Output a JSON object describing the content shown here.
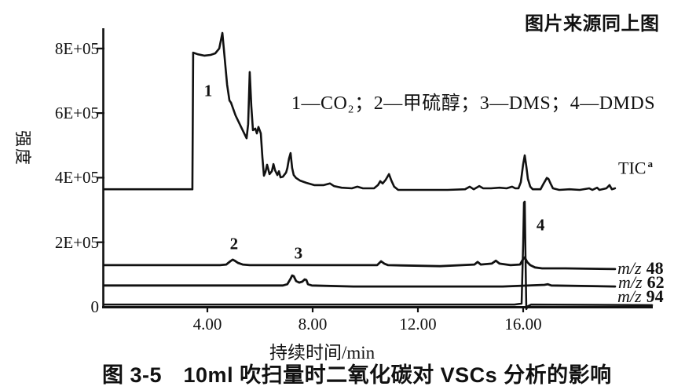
{
  "header": {
    "source_note": "图片来源同上图"
  },
  "chart_data": {
    "type": "line",
    "title": "图 3-5　10ml 吹扫量时二氧化碳对 VSCs 分析的影响",
    "legend_note": "1—CO₂；2—甲硫醇；3—DMS；4—DMDS",
    "xlabel": "持续时间/min",
    "ylabel": "强度",
    "xlim": [
      0,
      21
    ],
    "ylim": [
      0,
      880000
    ],
    "grid": false,
    "x_ticks": [
      {
        "t": 4,
        "label": "4.00"
      },
      {
        "t": 8,
        "label": "8.00"
      },
      {
        "t": 12,
        "label": "12.00"
      },
      {
        "t": 16,
        "label": "16.00"
      }
    ],
    "y_ticks": [
      {
        "value": 800000,
        "label": "8E+05"
      },
      {
        "value": 600000,
        "label": "6E+05"
      },
      {
        "value": 400000,
        "label": "4E+05"
      },
      {
        "value": 200000,
        "label": "2E+05"
      },
      {
        "value": 0,
        "label": "0"
      }
    ],
    "annotations": [
      {
        "label": "1",
        "t": 4.03,
        "intensity": 668000
      },
      {
        "label": "2",
        "t": 5.01,
        "intensity": 194000
      },
      {
        "label": "3",
        "t": 7.46,
        "intensity": 165000
      },
      {
        "label": "4",
        "t": 16.66,
        "intensity": 253000
      }
    ],
    "series": [
      {
        "name": "TIC",
        "sup": "a",
        "points": [
          [
            0.09,
            364000
          ],
          [
            3.43,
            364000
          ],
          [
            3.46,
            787000
          ],
          [
            3.64,
            782000
          ],
          [
            3.88,
            778000
          ],
          [
            4.12,
            780000
          ],
          [
            4.3,
            785000
          ],
          [
            4.45,
            800000
          ],
          [
            4.57,
            848000
          ],
          [
            4.66,
            768000
          ],
          [
            4.75,
            688000
          ],
          [
            4.84,
            639000
          ],
          [
            4.9,
            632000
          ],
          [
            5.07,
            593000
          ],
          [
            5.28,
            557000
          ],
          [
            5.49,
            522000
          ],
          [
            5.55,
            566000
          ],
          [
            5.61,
            727000
          ],
          [
            5.67,
            622000
          ],
          [
            5.73,
            547000
          ],
          [
            5.82,
            552000
          ],
          [
            5.88,
            537000
          ],
          [
            5.94,
            557000
          ],
          [
            6.03,
            537000
          ],
          [
            6.09,
            464000
          ],
          [
            6.15,
            406000
          ],
          [
            6.21,
            418000
          ],
          [
            6.27,
            440000
          ],
          [
            6.36,
            411000
          ],
          [
            6.45,
            420000
          ],
          [
            6.51,
            442000
          ],
          [
            6.57,
            423000
          ],
          [
            6.66,
            408000
          ],
          [
            6.72,
            420000
          ],
          [
            6.78,
            401000
          ],
          [
            6.87,
            403000
          ],
          [
            6.99,
            416000
          ],
          [
            7.04,
            430000
          ],
          [
            7.1,
            459000
          ],
          [
            7.16,
            476000
          ],
          [
            7.22,
            430000
          ],
          [
            7.28,
            408000
          ],
          [
            7.37,
            399000
          ],
          [
            7.52,
            391000
          ],
          [
            7.76,
            384000
          ],
          [
            8.06,
            377000
          ],
          [
            8.42,
            377000
          ],
          [
            8.66,
            382000
          ],
          [
            8.81,
            374000
          ],
          [
            9.1,
            369000
          ],
          [
            9.49,
            367000
          ],
          [
            9.7,
            372000
          ],
          [
            9.91,
            367000
          ],
          [
            10.33,
            367000
          ],
          [
            10.48,
            377000
          ],
          [
            10.57,
            389000
          ],
          [
            10.66,
            382000
          ],
          [
            10.78,
            394000
          ],
          [
            10.9,
            411000
          ],
          [
            10.99,
            391000
          ],
          [
            11.1,
            372000
          ],
          [
            11.25,
            362000
          ],
          [
            11.64,
            362000
          ],
          [
            12.39,
            362000
          ],
          [
            13.13,
            362000
          ],
          [
            13.79,
            364000
          ],
          [
            13.97,
            372000
          ],
          [
            14.12,
            364000
          ],
          [
            14.33,
            374000
          ],
          [
            14.48,
            367000
          ],
          [
            14.78,
            367000
          ],
          [
            15.1,
            369000
          ],
          [
            15.37,
            367000
          ],
          [
            15.58,
            372000
          ],
          [
            15.7,
            367000
          ],
          [
            15.82,
            367000
          ],
          [
            15.91,
            386000
          ],
          [
            16.0,
            442000
          ],
          [
            16.06,
            469000
          ],
          [
            16.12,
            435000
          ],
          [
            16.18,
            396000
          ],
          [
            16.27,
            372000
          ],
          [
            16.36,
            364000
          ],
          [
            16.66,
            364000
          ],
          [
            16.78,
            382000
          ],
          [
            16.9,
            399000
          ],
          [
            16.96,
            396000
          ],
          [
            17.04,
            382000
          ],
          [
            17.13,
            367000
          ],
          [
            17.37,
            362000
          ],
          [
            17.76,
            364000
          ],
          [
            18.15,
            362000
          ],
          [
            18.51,
            367000
          ],
          [
            18.63,
            362000
          ],
          [
            18.81,
            369000
          ],
          [
            18.9,
            362000
          ],
          [
            19.16,
            367000
          ],
          [
            19.28,
            377000
          ],
          [
            19.37,
            364000
          ],
          [
            19.49,
            367000
          ]
        ]
      },
      {
        "name": "m/z 48",
        "prefix": "m/z",
        "value": "48",
        "points": [
          [
            0.09,
            129000
          ],
          [
            4.48,
            129000
          ],
          [
            4.72,
            131000
          ],
          [
            4.87,
            141000
          ],
          [
            4.96,
            146000
          ],
          [
            5.04,
            143000
          ],
          [
            5.16,
            136000
          ],
          [
            5.34,
            131000
          ],
          [
            5.61,
            129000
          ],
          [
            10.45,
            129000
          ],
          [
            10.6,
            141000
          ],
          [
            10.72,
            134000
          ],
          [
            10.87,
            129000
          ],
          [
            12.84,
            126000
          ],
          [
            14.15,
            131000
          ],
          [
            14.27,
            139000
          ],
          [
            14.39,
            131000
          ],
          [
            14.81,
            134000
          ],
          [
            14.96,
            143000
          ],
          [
            15.1,
            134000
          ],
          [
            15.52,
            129000
          ],
          [
            15.88,
            131000
          ],
          [
            16.0,
            148000
          ],
          [
            16.06,
            153000
          ],
          [
            16.15,
            139000
          ],
          [
            16.27,
            129000
          ],
          [
            16.45,
            122000
          ],
          [
            16.72,
            119000
          ],
          [
            17.61,
            119000
          ],
          [
            19.49,
            117000
          ]
        ]
      },
      {
        "name": "m/z 62",
        "prefix": "m/z",
        "value": "62",
        "points": [
          [
            0.09,
            66000
          ],
          [
            6.87,
            66000
          ],
          [
            7.04,
            70000
          ],
          [
            7.16,
            87000
          ],
          [
            7.22,
            97000
          ],
          [
            7.28,
            95000
          ],
          [
            7.37,
            80000
          ],
          [
            7.49,
            75000
          ],
          [
            7.61,
            78000
          ],
          [
            7.7,
            85000
          ],
          [
            7.76,
            83000
          ],
          [
            7.82,
            70000
          ],
          [
            7.97,
            66000
          ],
          [
            9.55,
            63000
          ],
          [
            12.54,
            63000
          ],
          [
            15.22,
            63000
          ],
          [
            16.81,
            68000
          ],
          [
            16.93,
            70000
          ],
          [
            17.07,
            66000
          ],
          [
            19.49,
            63000
          ]
        ]
      },
      {
        "name": "m/z 94",
        "prefix": "m/z",
        "value": "94",
        "points": [
          [
            0.09,
            7000
          ],
          [
            15.67,
            7000
          ],
          [
            15.94,
            10000
          ],
          [
            16.0,
            197000
          ],
          [
            16.03,
            323000
          ],
          [
            16.06,
            326000
          ],
          [
            16.09,
            148000
          ],
          [
            16.12,
            -7000
          ],
          [
            16.18,
            2000
          ],
          [
            16.3,
            7000
          ],
          [
            20.9,
            5000
          ]
        ]
      }
    ]
  }
}
